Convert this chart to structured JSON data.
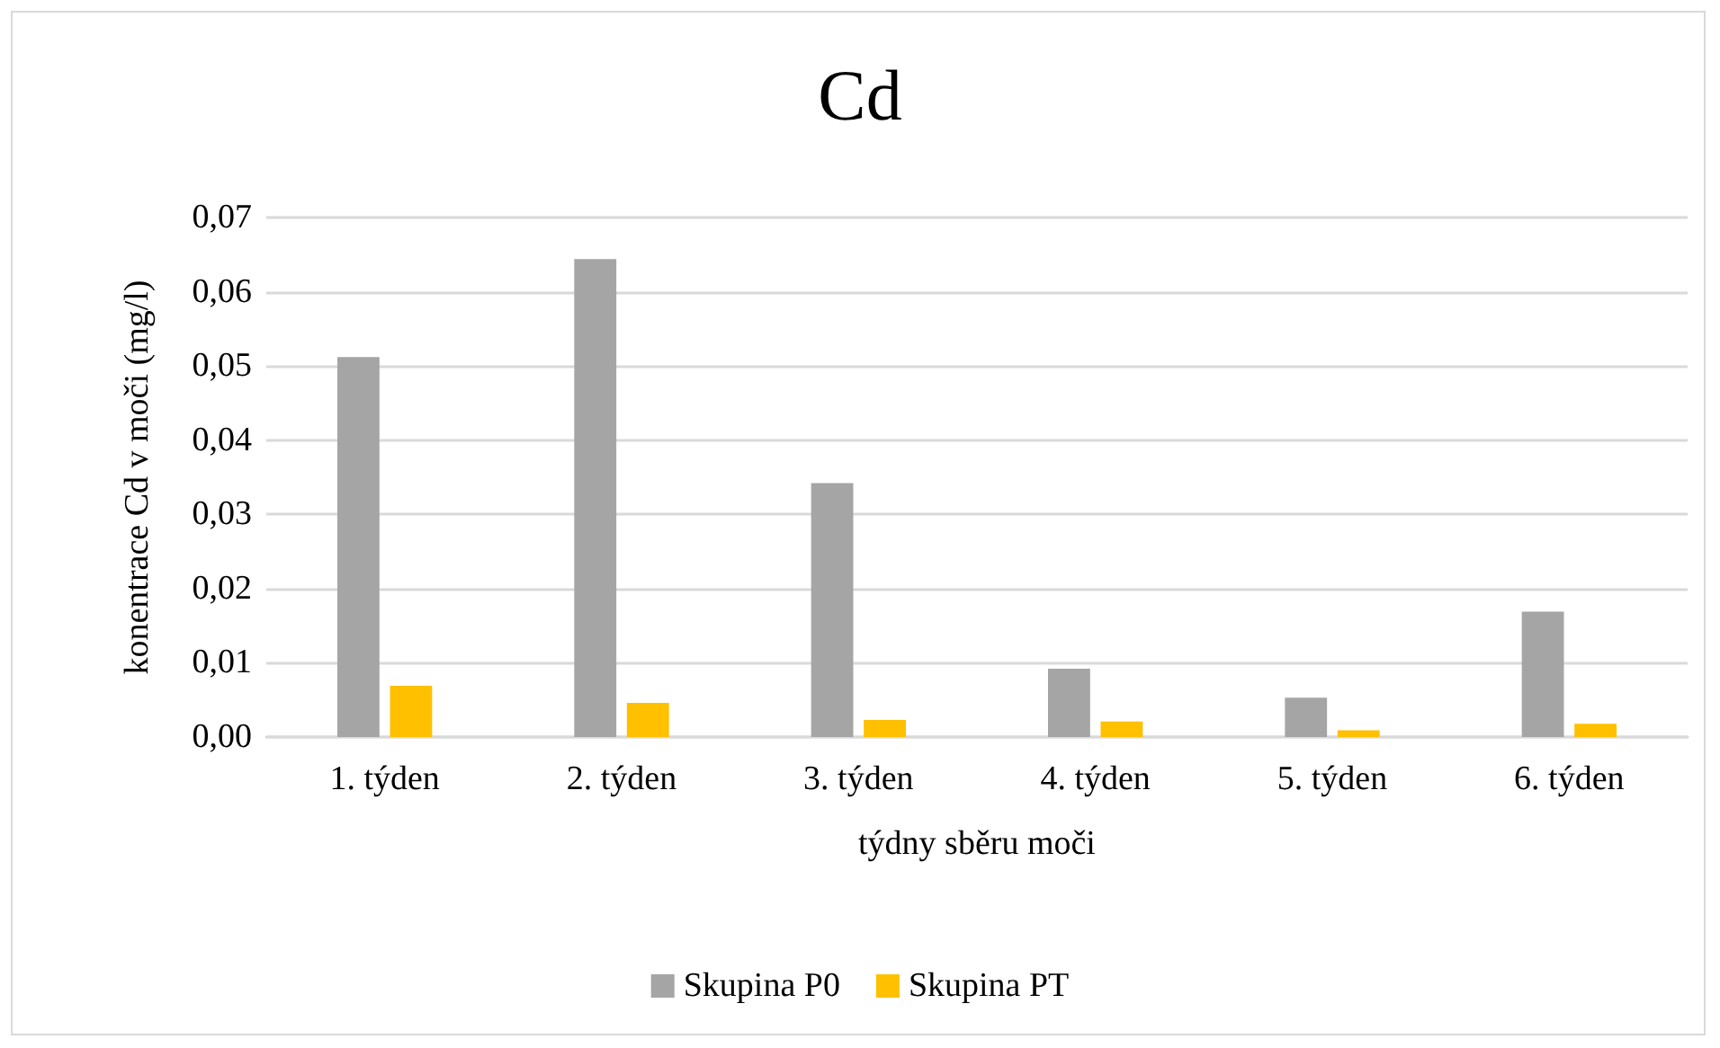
{
  "chart_data": {
    "type": "bar",
    "title": "Cd",
    "xlabel": "týdny sběru moči",
    "ylabel": "konentrace Cd v moči (mg/l)",
    "categories": [
      "1. týden",
      "2. týden",
      "3. týden",
      "4. týden",
      "5. týden",
      "6. týden"
    ],
    "series": [
      {
        "name": "Skupina P0",
        "color": "#a5a5a5",
        "values": [
          0.0512,
          0.0644,
          0.0342,
          0.0092,
          0.0053,
          0.0169
        ]
      },
      {
        "name": "Skupina PT",
        "color": "#ffc000",
        "values": [
          0.0069,
          0.0046,
          0.0023,
          0.0021,
          0.0009,
          0.0018
        ]
      }
    ],
    "ylim": [
      0,
      0.07
    ],
    "yticks": [
      {
        "value": 0,
        "label": "0,00"
      },
      {
        "value": 0.01,
        "label": "0,01"
      },
      {
        "value": 0.02,
        "label": "0,02"
      },
      {
        "value": 0.03,
        "label": "0,03"
      },
      {
        "value": 0.04,
        "label": "0,04"
      },
      {
        "value": 0.05,
        "label": "0,05"
      },
      {
        "value": 0.06,
        "label": "0,06"
      },
      {
        "value": 0.07,
        "label": "0,07"
      }
    ],
    "grid": "y",
    "legend": "bottom"
  }
}
